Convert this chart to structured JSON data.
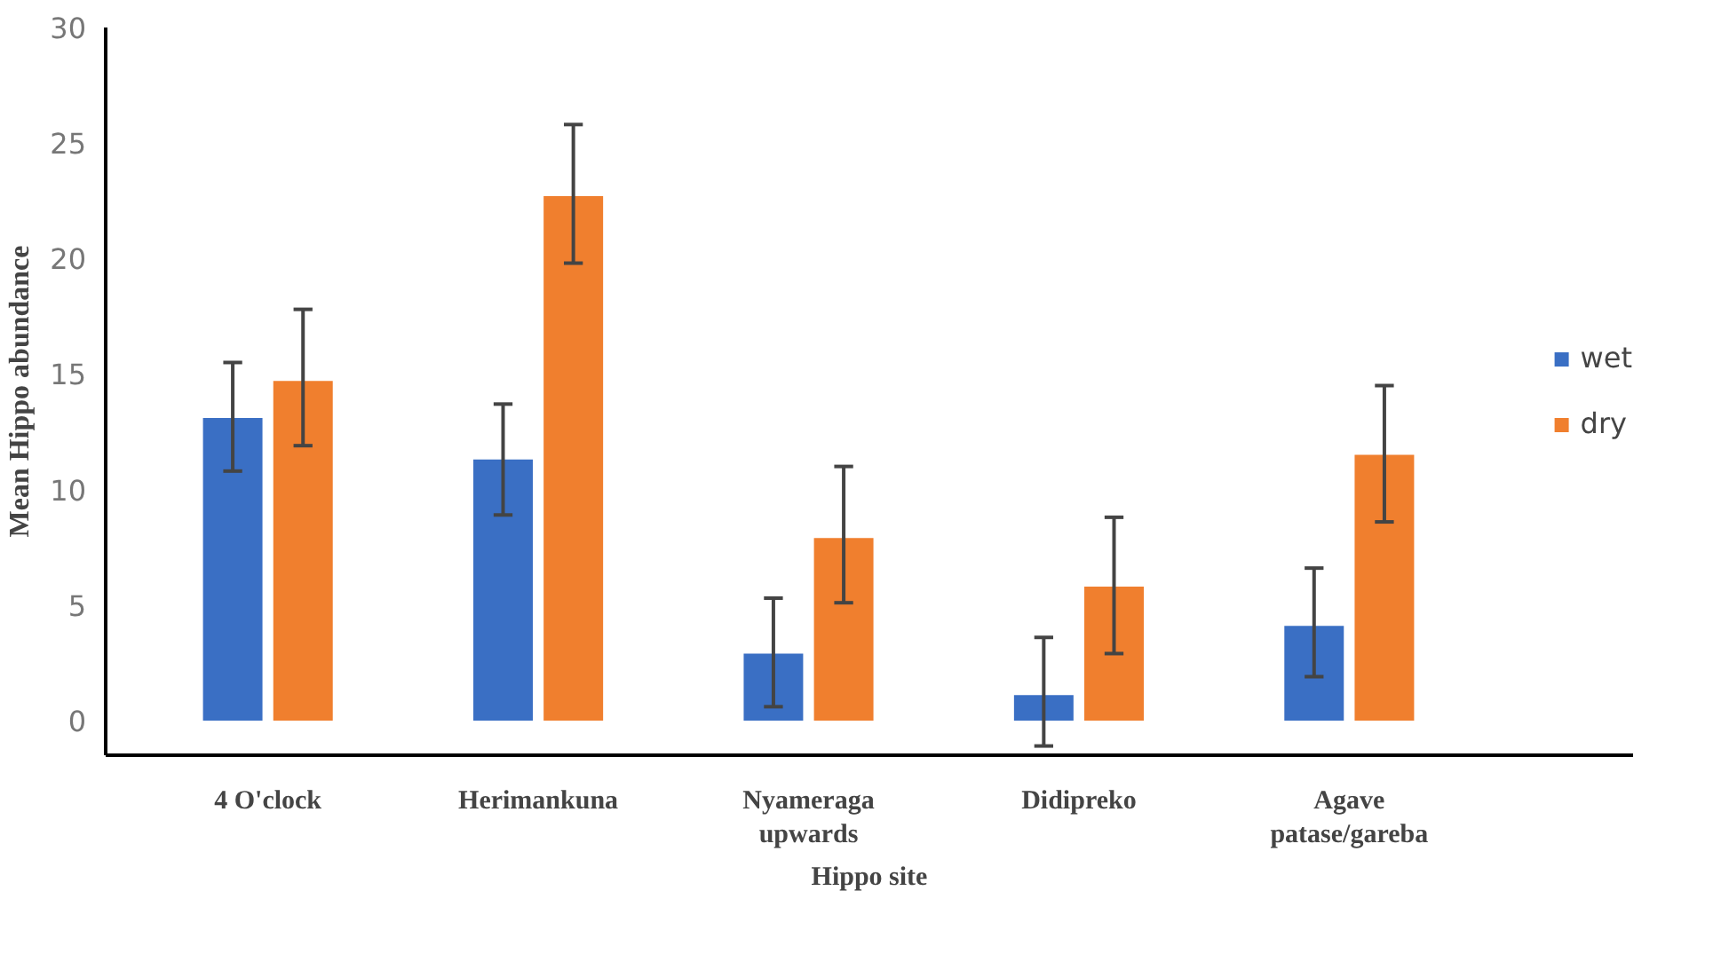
{
  "chart_data": {
    "type": "bar",
    "xlabel": "Hippo site",
    "ylabel": "Mean Hippo abundance",
    "categories": [
      "4 O'clock",
      "Herimankuna",
      "Nyameraga\nupwards",
      "Didipreko",
      "Agave\npatase/gareba"
    ],
    "series": [
      {
        "name": "wet",
        "color": "#3a6fc4",
        "values": [
          13.1,
          11.3,
          2.9,
          1.1,
          4.1
        ],
        "errors": [
          [
            10.8,
            15.5
          ],
          [
            8.9,
            13.7
          ],
          [
            0.6,
            5.3
          ],
          [
            -1.1,
            3.6
          ],
          [
            1.9,
            6.6
          ]
        ]
      },
      {
        "name": "dry",
        "color": "#f07f2e",
        "values": [
          14.7,
          22.7,
          7.9,
          5.8,
          11.5
        ],
        "errors": [
          [
            11.9,
            17.8
          ],
          [
            19.8,
            25.8
          ],
          [
            5.1,
            11.0
          ],
          [
            2.9,
            8.8
          ],
          [
            8.6,
            14.5
          ]
        ]
      }
    ],
    "ylim": [
      -1.5,
      30
    ],
    "yticks": [
      0,
      5,
      10,
      15,
      20,
      25,
      30
    ],
    "grid": false,
    "legend": "right"
  }
}
